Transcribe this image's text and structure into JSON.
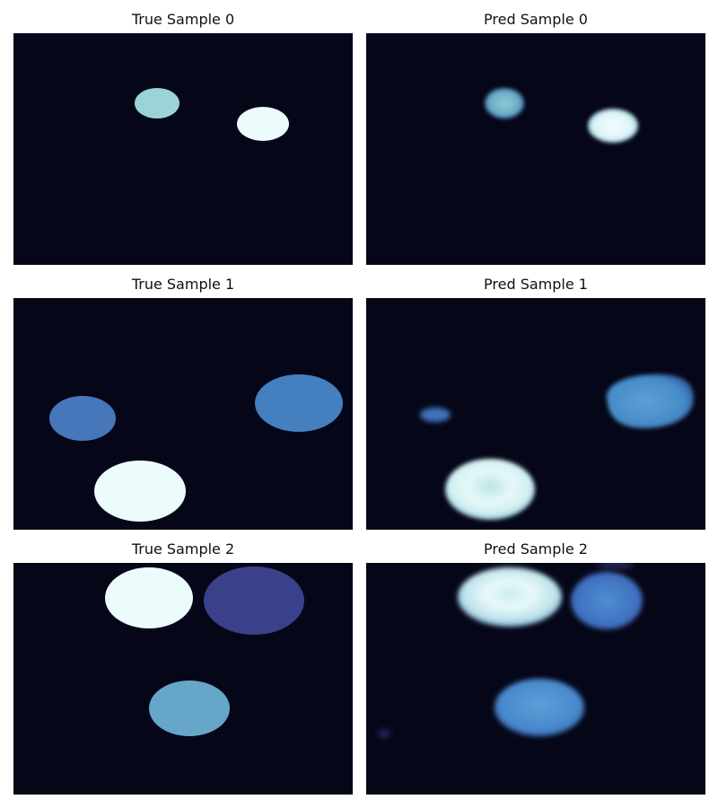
{
  "panels": [
    {
      "title": "True Sample 0",
      "kind": "true"
    },
    {
      "title": "Pred Sample 0",
      "kind": "pred"
    },
    {
      "title": "True Sample 1",
      "kind": "true"
    },
    {
      "title": "Pred Sample 1",
      "kind": "pred"
    },
    {
      "title": "True Sample 2",
      "kind": "true"
    },
    {
      "title": "Pred Sample 2",
      "kind": "pred"
    }
  ],
  "colors": {
    "background": "#050718",
    "very_light_cyan": "#ecfbfc",
    "light_teal": "#9cd3d8",
    "mid_blue": "#4677bb",
    "steel_blue": "#447fbf",
    "sky_blue": "#66a6c8",
    "indigo": "#3a418a"
  }
}
